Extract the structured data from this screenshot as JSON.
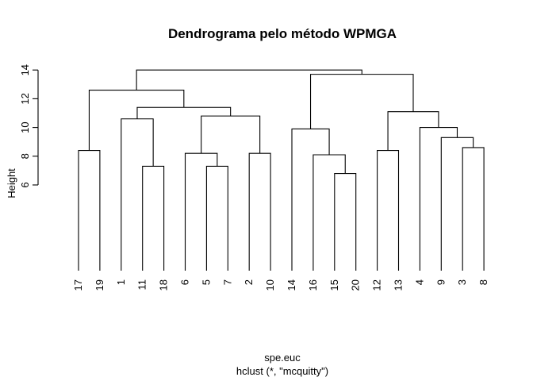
{
  "chart_data": {
    "type": "dendrogram",
    "title": "Dendrograma pelo método WPMGA",
    "ylabel": "Height",
    "xlabel": "spe.euc",
    "sub": "hclust (*, \"mcquitty\")",
    "yticks": [
      6,
      8,
      10,
      12,
      14
    ],
    "ylim": [
      0,
      14
    ],
    "leaves": [
      "17",
      "19",
      "1",
      "11",
      "18",
      "6",
      "5",
      "7",
      "2",
      "10",
      "14",
      "16",
      "15",
      "20",
      "12",
      "13",
      "4",
      "9",
      "3",
      "8"
    ],
    "merges": [
      {
        "left": "17",
        "right": "19",
        "height": 8.4
      },
      {
        "left": "11",
        "right": "18",
        "height": 7.3
      },
      {
        "left": "1",
        "right": "11-18",
        "height": 10.6
      },
      {
        "left": "5",
        "right": "7",
        "height": 7.3
      },
      {
        "left": "6",
        "right": "5-7",
        "height": 8.2
      },
      {
        "left": "2",
        "right": "10",
        "height": 8.2
      },
      {
        "left": "6-5-7",
        "right": "2-10",
        "height": 10.8
      },
      {
        "left": "1-11-18",
        "right": "6-5-7-2-10",
        "height": 11.4
      },
      {
        "left": "17-19",
        "right": "1-11-18-6-5-7-2-10",
        "height": 12.6
      },
      {
        "left": "15",
        "right": "20",
        "height": 6.8
      },
      {
        "left": "16",
        "right": "15-20",
        "height": 8.1
      },
      {
        "left": "14",
        "right": "16-15-20",
        "height": 9.9
      },
      {
        "left": "12",
        "right": "13",
        "height": 8.4
      },
      {
        "left": "3",
        "right": "8",
        "height": 8.6
      },
      {
        "left": "9",
        "right": "3-8",
        "height": 9.3
      },
      {
        "left": "4",
        "right": "9-3-8",
        "height": 10.0
      },
      {
        "left": "12-13",
        "right": "4-9-3-8",
        "height": 11.1
      },
      {
        "left": "14-16-15-20",
        "right": "12-13-4-9-3-8",
        "height": 13.7
      },
      {
        "left": "17-19-1-11-18-6-5-7-2-10",
        "right": "14-16-15-20-12-13-4-9-3-8",
        "height": 14.0
      }
    ]
  }
}
